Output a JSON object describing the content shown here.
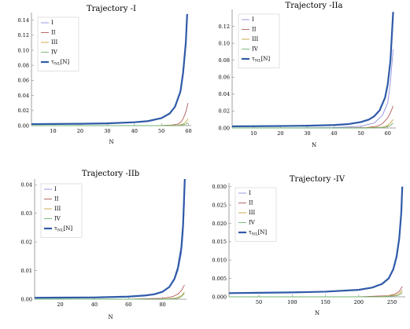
{
  "chart_data": [
    {
      "type": "line",
      "title": "Trajectory -I",
      "xlabel": "N",
      "ylabel": "",
      "xlim": [
        2,
        61
      ],
      "ylim": [
        0,
        0.15
      ],
      "xticks": [
        10,
        20,
        30,
        40,
        50,
        60
      ],
      "yticks": [
        0.02,
        0.04,
        0.06,
        0.08,
        0.1,
        0.12,
        0.14
      ],
      "xticklabels": [
        "10",
        "20",
        "30",
        "40",
        "50",
        "60"
      ],
      "yticklabels": [
        "0.02",
        "0.04",
        "0.06",
        "0.08",
        "0.10",
        "0.12",
        "0.14"
      ],
      "zero_label": "0.00",
      "legend": "top-left",
      "series": [
        {
          "name": "I",
          "color": "#8f8fdd",
          "x": [
            2,
            10,
            20,
            30,
            40,
            45,
            50,
            53,
            55,
            57,
            58,
            59,
            59.5
          ],
          "y": [
            0.002,
            0.0022,
            0.0025,
            0.003,
            0.0045,
            0.006,
            0.01,
            0.016,
            0.025,
            0.045,
            0.07,
            0.11,
            0.148
          ]
        },
        {
          "name": "II",
          "color": "#b35a5a",
          "x": [
            2,
            30,
            50,
            54,
            56,
            57,
            58,
            59,
            59.8
          ],
          "y": [
            0,
            0,
            0.0002,
            0.0008,
            0.002,
            0.004,
            0.009,
            0.018,
            0.03
          ]
        },
        {
          "name": "III",
          "color": "#c8a23f",
          "x": [
            2,
            50,
            56,
            58,
            59,
            59.8
          ],
          "y": [
            0,
            0,
            0.0005,
            0.002,
            0.005,
            0.009
          ]
        },
        {
          "name": "IV",
          "color": "#6fb36f",
          "x": [
            2,
            50,
            57,
            59,
            59.8
          ],
          "y": [
            0,
            0,
            0.0003,
            0.002,
            0.004
          ]
        },
        {
          "name": "τNL[N]",
          "color": "#2f5aa8",
          "x": [
            2,
            10,
            20,
            30,
            40,
            45,
            50,
            53,
            55,
            57,
            58,
            59,
            59.5
          ],
          "y": [
            0.002,
            0.0022,
            0.0025,
            0.003,
            0.0045,
            0.006,
            0.01,
            0.016,
            0.025,
            0.045,
            0.07,
            0.11,
            0.148
          ]
        }
      ]
    },
    {
      "type": "line",
      "title": "Trajectory -IIa",
      "xlabel": "N",
      "ylabel": "",
      "xlim": [
        2,
        63
      ],
      "ylim": [
        0,
        0.14
      ],
      "xticks": [
        10,
        20,
        30,
        40,
        50,
        60
      ],
      "yticks": [
        0.02,
        0.04,
        0.06,
        0.08,
        0.1,
        0.12
      ],
      "xticklabels": [
        "10",
        "20",
        "30",
        "40",
        "50",
        "60"
      ],
      "yticklabels": [
        "0.02",
        "0.04",
        "0.06",
        "0.08",
        "0.10",
        "0.12"
      ],
      "zero_label": "0.00",
      "legend": "top-left",
      "series": [
        {
          "name": "I",
          "color": "#8f8fdd",
          "x": [
            2,
            20,
            40,
            50,
            55,
            58,
            60,
            61,
            62
          ],
          "y": [
            0,
            0,
            0.0005,
            0.002,
            0.006,
            0.015,
            0.03,
            0.055,
            0.093
          ]
        },
        {
          "name": "II",
          "color": "#b35a5a",
          "x": [
            2,
            40,
            52,
            56,
            58,
            60,
            61,
            62
          ],
          "y": [
            0,
            0,
            0.0005,
            0.002,
            0.005,
            0.012,
            0.018,
            0.026
          ]
        },
        {
          "name": "III",
          "color": "#c8a23f",
          "x": [
            2,
            50,
            58,
            60,
            61,
            62
          ],
          "y": [
            0,
            0,
            0.001,
            0.003,
            0.006,
            0.01
          ]
        },
        {
          "name": "IV",
          "color": "#6fb36f",
          "x": [
            2,
            52,
            59,
            61,
            62
          ],
          "y": [
            0,
            0,
            0.0008,
            0.003,
            0.006
          ]
        },
        {
          "name": "τNL[N]",
          "color": "#2f5aa8",
          "x": [
            2,
            10,
            20,
            30,
            40,
            45,
            50,
            53,
            55,
            57,
            59,
            60,
            61,
            62
          ],
          "y": [
            0.002,
            0.0021,
            0.0023,
            0.0027,
            0.0035,
            0.0045,
            0.007,
            0.01,
            0.014,
            0.021,
            0.036,
            0.052,
            0.08,
            0.137
          ]
        }
      ]
    },
    {
      "type": "line",
      "title": "Trajectory -IIb",
      "xlabel": "N",
      "ylabel": "",
      "xlim": [
        5,
        94
      ],
      "ylim": [
        0,
        0.042
      ],
      "xticks": [
        20,
        40,
        60,
        80
      ],
      "yticks": [
        0.01,
        0.02,
        0.03,
        0.04
      ],
      "xticklabels": [
        "20",
        "40",
        "60",
        "80"
      ],
      "yticklabels": [
        "0.01",
        "0.02",
        "0.03",
        "0.04"
      ],
      "zero_label": "0.00",
      "legend": "top-left",
      "series": [
        {
          "name": "I",
          "color": "#8f8fdd",
          "x": [
            5,
            20,
            40,
            60,
            70,
            75,
            80,
            84,
            87,
            89,
            91,
            92,
            92.8
          ],
          "y": [
            0.0005,
            0.00055,
            0.0006,
            0.0009,
            0.0013,
            0.0017,
            0.0026,
            0.0042,
            0.0068,
            0.01,
            0.016,
            0.023,
            0.034
          ]
        },
        {
          "name": "II",
          "color": "#b35a5a",
          "x": [
            5,
            60,
            80,
            86,
            89,
            91,
            92.8
          ],
          "y": [
            0,
            0,
            0.0003,
            0.0009,
            0.0018,
            0.003,
            0.005
          ]
        },
        {
          "name": "III",
          "color": "#c8a23f",
          "x": [
            5,
            80,
            88,
            91,
            92.8
          ],
          "y": [
            0,
            0,
            0.0004,
            0.0012,
            0.0025
          ]
        },
        {
          "name": "IV",
          "color": "#6fb36f",
          "x": [
            5,
            82,
            89,
            91,
            92.8
          ],
          "y": [
            0,
            0,
            0.0003,
            0.0009,
            0.002
          ]
        },
        {
          "name": "τNL[N]",
          "color": "#2f5aa8",
          "x": [
            5,
            20,
            40,
            60,
            70,
            75,
            80,
            84,
            87,
            89,
            91,
            92,
            93
          ],
          "y": [
            0.0005,
            0.00055,
            0.0006,
            0.0009,
            0.0013,
            0.0017,
            0.0026,
            0.0043,
            0.0072,
            0.011,
            0.018,
            0.026,
            0.042
          ]
        }
      ]
    },
    {
      "type": "line",
      "title": "Trajectory -IV",
      "xlabel": "N",
      "ylabel": "",
      "xlim": [
        5,
        270
      ],
      "ylim": [
        0,
        0.031
      ],
      "xticks": [
        50,
        100,
        150,
        200,
        250
      ],
      "yticks": [
        0.005,
        0.01,
        0.015,
        0.02,
        0.025,
        0.03
      ],
      "xticklabels": [
        "50",
        "100",
        "150",
        "200",
        "250"
      ],
      "yticklabels": [
        "0.005",
        "0.010",
        "0.015",
        "0.020",
        "0.025",
        "0.030"
      ],
      "zero_label": "0.000",
      "legend": "top-left",
      "series": [
        {
          "name": "I",
          "color": "#8f8fdd",
          "x": [
            5,
            50,
            100,
            150,
            200,
            220,
            235,
            245,
            252,
            257,
            261,
            264,
            265.5
          ],
          "y": [
            0.001,
            0.0011,
            0.0012,
            0.0014,
            0.0019,
            0.0025,
            0.0035,
            0.005,
            0.0075,
            0.011,
            0.016,
            0.023,
            0.03
          ]
        },
        {
          "name": "II",
          "color": "#b35a5a",
          "x": [
            5,
            200,
            245,
            255,
            261,
            265.5
          ],
          "y": [
            0,
            0,
            0.0003,
            0.0008,
            0.0015,
            0.0028
          ]
        },
        {
          "name": "III",
          "color": "#c8a23f",
          "x": [
            5,
            230,
            255,
            262,
            265.5
          ],
          "y": [
            0,
            0,
            0.0004,
            0.001,
            0.0018
          ]
        },
        {
          "name": "IV",
          "color": "#6fb36f",
          "x": [
            5,
            235,
            258,
            263,
            265.5
          ],
          "y": [
            0,
            0,
            0.0003,
            0.0007,
            0.0012
          ]
        },
        {
          "name": "τNL[N]",
          "color": "#2f5aa8",
          "x": [
            5,
            50,
            100,
            150,
            200,
            220,
            235,
            245,
            252,
            257,
            261,
            264,
            265.5
          ],
          "y": [
            0.001,
            0.0011,
            0.0012,
            0.0014,
            0.0019,
            0.0025,
            0.0035,
            0.005,
            0.0075,
            0.011,
            0.016,
            0.023,
            0.03
          ]
        }
      ]
    }
  ]
}
